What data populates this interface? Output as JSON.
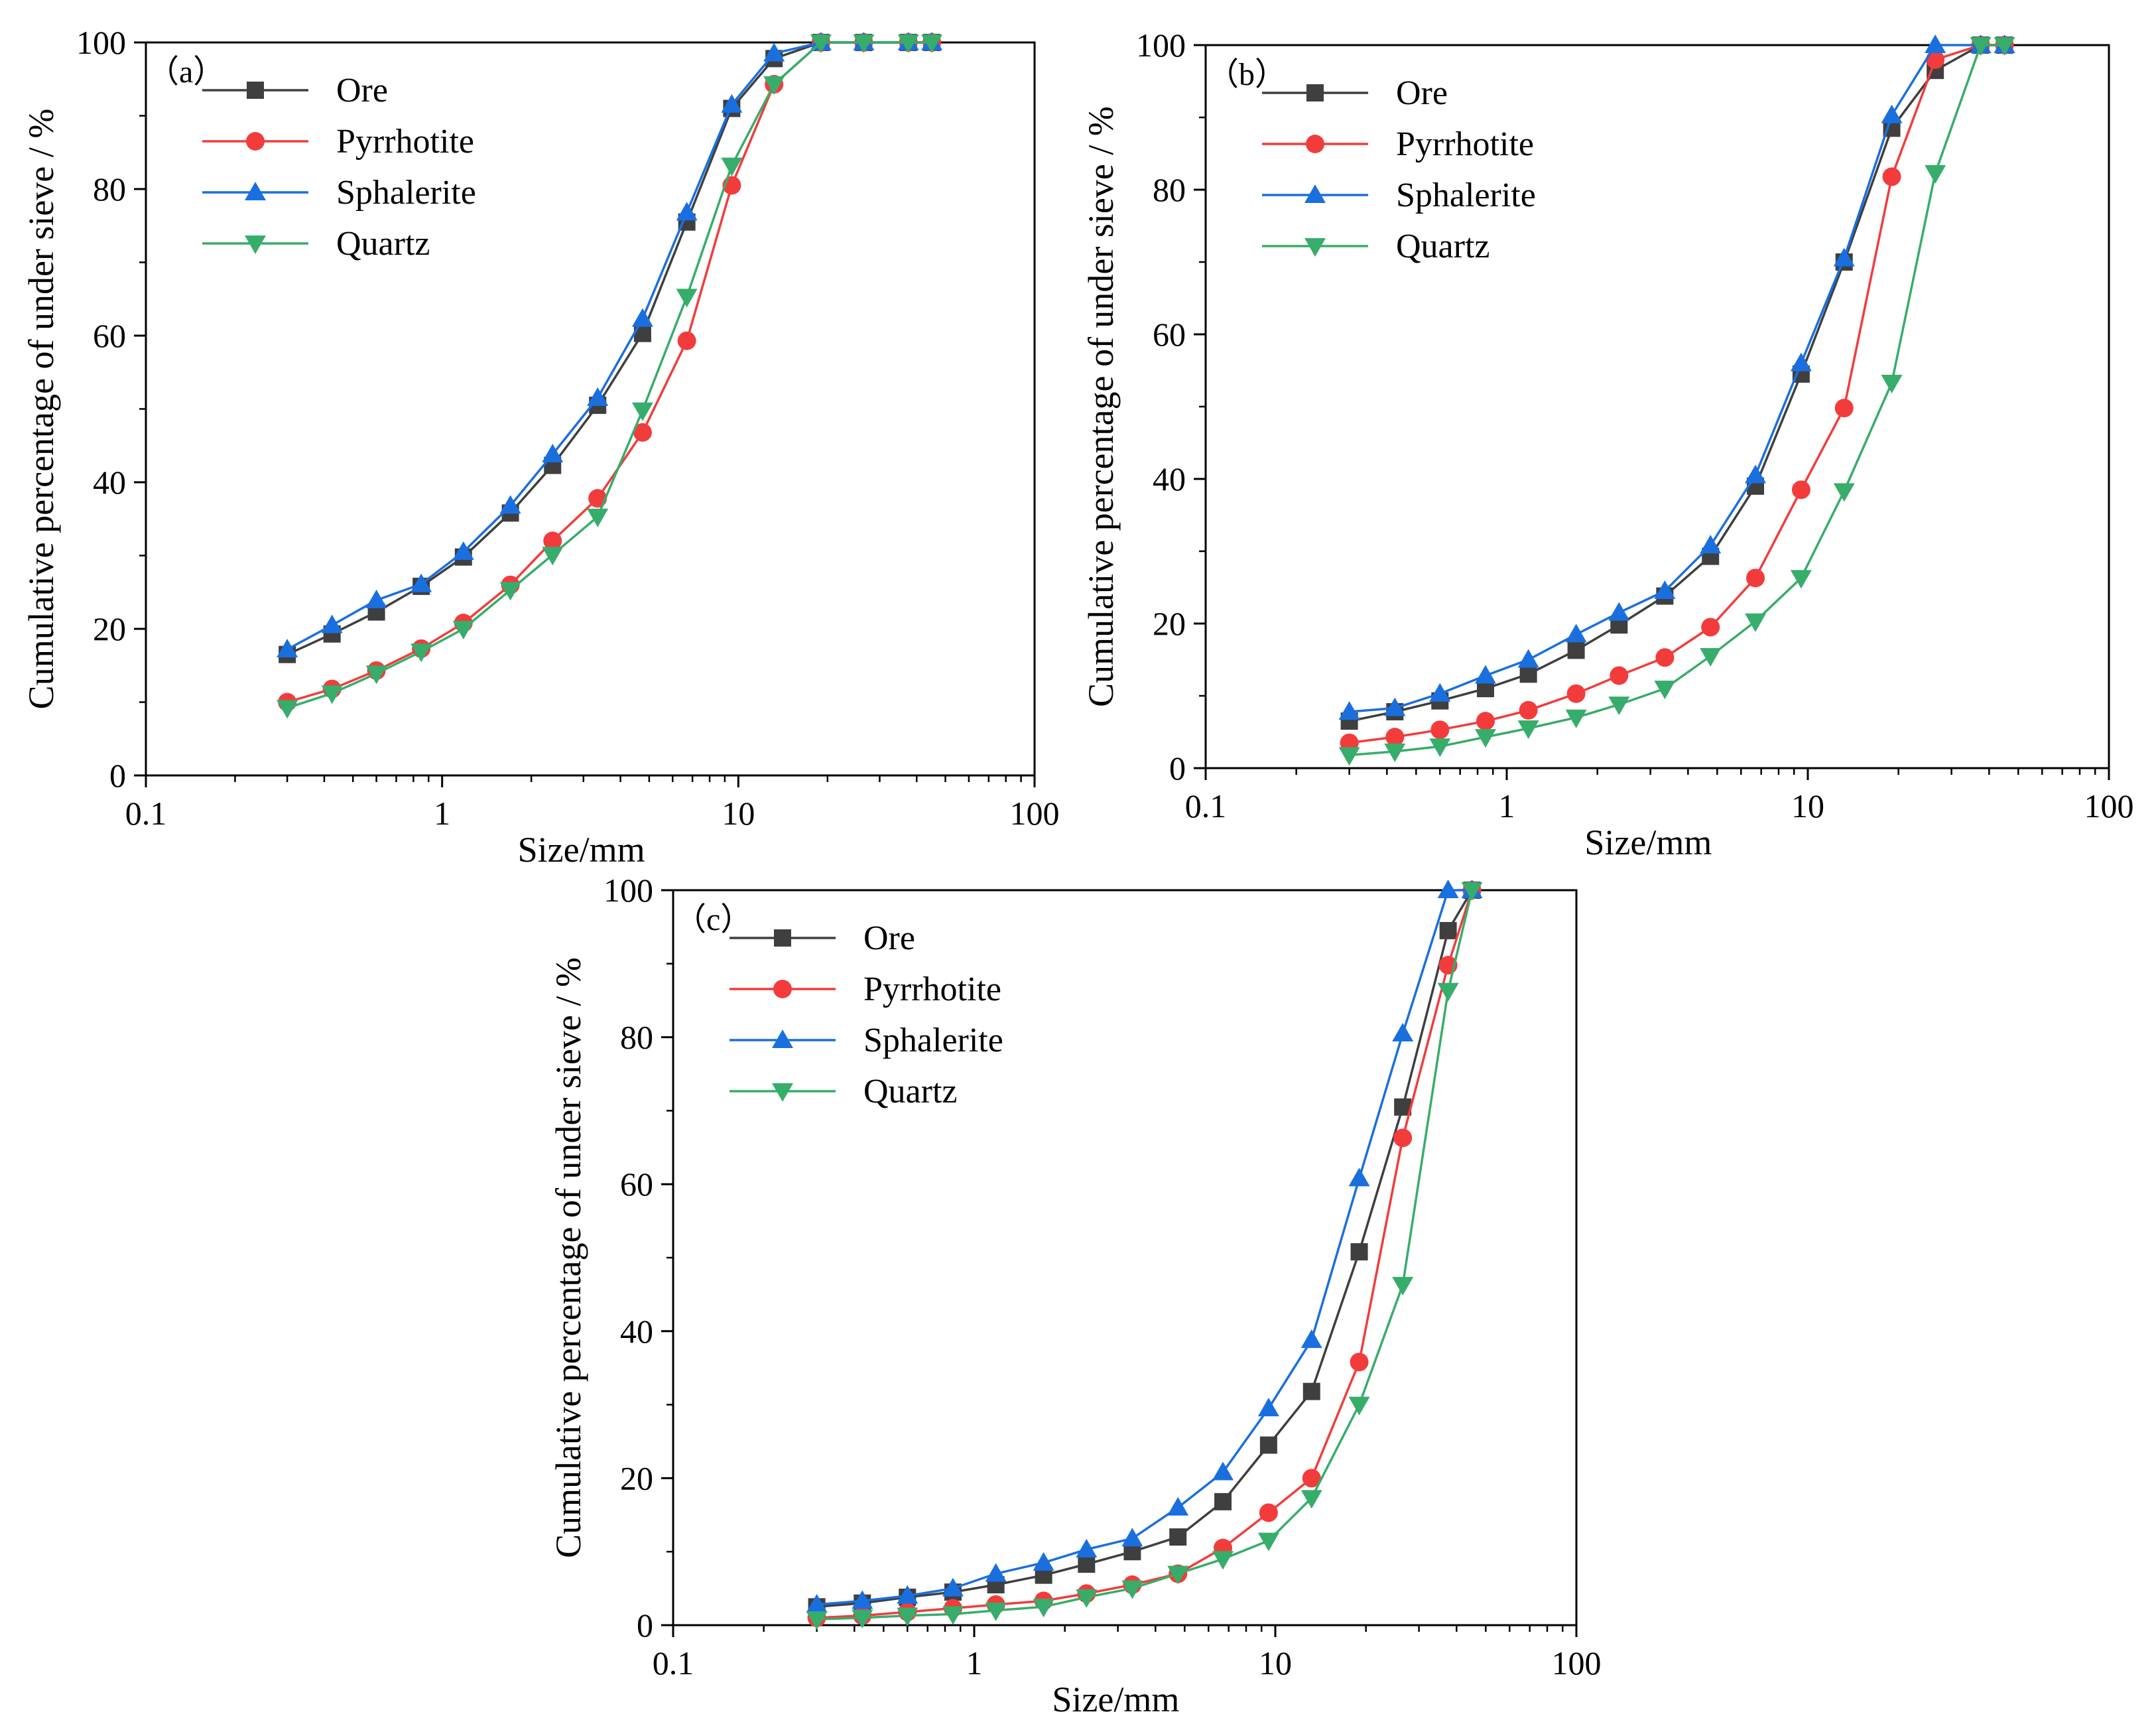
{
  "chart_data": [
    {
      "type": "line",
      "panel_label": "（a）",
      "xlabel": "Size/mm",
      "ylabel": "Cumulative percentage of under sieve / %",
      "xscale": "log",
      "xlim": [
        0.1,
        100
      ],
      "ylim": [
        0,
        100
      ],
      "xticks": [
        0.1,
        1,
        10,
        100
      ],
      "xtick_labels": [
        "0.1",
        "1",
        "10",
        "100"
      ],
      "yticks": [
        0,
        20,
        40,
        60,
        80,
        100
      ],
      "ytick_labels": [
        "0",
        "20",
        "40",
        "60",
        "80",
        "100"
      ],
      "legend_position": "top-left",
      "x": [
        0.3,
        0.425,
        0.6,
        0.85,
        1.18,
        1.7,
        2.36,
        3.35,
        4.75,
        6.7,
        9.5,
        13.2,
        19,
        26.5,
        37.5,
        45
      ],
      "series": [
        {
          "name": "Ore",
          "color": "#3f3f3f",
          "marker": "square",
          "values": [
            16.5,
            19.3,
            22.3,
            25.8,
            29.8,
            35.8,
            42.3,
            50.5,
            60.3,
            75.5,
            91.0,
            97.8,
            100,
            100,
            100,
            100
          ]
        },
        {
          "name": "Pyrrhotite",
          "color": "#f23c3c",
          "marker": "circle",
          "values": [
            10.0,
            11.8,
            14.3,
            17.3,
            20.8,
            26.0,
            32.0,
            37.8,
            46.8,
            59.3,
            80.5,
            94.3,
            100,
            100,
            100,
            100
          ]
        },
        {
          "name": "Sphalerite",
          "color": "#1a6fdf",
          "marker": "triangle-up",
          "values": [
            17.2,
            20.5,
            23.9,
            26.1,
            30.5,
            36.8,
            43.8,
            51.5,
            62.3,
            76.8,
            91.5,
            98.5,
            100,
            100,
            100,
            100
          ]
        },
        {
          "name": "Quartz",
          "color": "#37ad6b",
          "marker": "triangle-down",
          "values": [
            9.2,
            11.2,
            13.9,
            16.9,
            20.0,
            25.3,
            30.1,
            35.3,
            49.8,
            65.3,
            83.2,
            94.3,
            100,
            100,
            100,
            100
          ]
        }
      ]
    },
    {
      "type": "line",
      "panel_label": "（b）",
      "xlabel": "Size/mm",
      "ylabel": "Cumulative percentage of under sieve / %",
      "xscale": "log",
      "xlim": [
        0.1,
        100
      ],
      "ylim": [
        0,
        100
      ],
      "xticks": [
        0.1,
        1,
        10,
        100
      ],
      "xtick_labels": [
        "0.1",
        "1",
        "10",
        "100"
      ],
      "yticks": [
        0,
        20,
        40,
        60,
        80,
        100
      ],
      "ytick_labels": [
        "0",
        "20",
        "40",
        "60",
        "80",
        "100"
      ],
      "legend_position": "top-left",
      "x": [
        0.3,
        0.425,
        0.6,
        0.85,
        1.18,
        1.7,
        2.36,
        3.35,
        4.75,
        6.7,
        9.5,
        13.2,
        19,
        26.5,
        37.5,
        45
      ],
      "series": [
        {
          "name": "Ore",
          "color": "#3f3f3f",
          "marker": "square",
          "values": [
            6.5,
            7.8,
            9.3,
            11.0,
            13.0,
            16.3,
            19.8,
            23.8,
            29.3,
            39.0,
            54.5,
            70.0,
            88.5,
            96.5,
            100,
            100
          ]
        },
        {
          "name": "Pyrrhotite",
          "color": "#f23c3c",
          "marker": "circle",
          "values": [
            3.5,
            4.3,
            5.3,
            6.5,
            8.0,
            10.3,
            12.8,
            15.3,
            19.5,
            26.3,
            38.5,
            49.8,
            81.8,
            98.0,
            100,
            100
          ]
        },
        {
          "name": "Sphalerite",
          "color": "#1a6fdf",
          "marker": "triangle-up",
          "values": [
            7.8,
            8.3,
            10.3,
            12.8,
            15.0,
            18.5,
            21.5,
            24.5,
            30.8,
            40.5,
            56.0,
            70.5,
            90.3,
            100,
            100,
            100
          ]
        },
        {
          "name": "Quartz",
          "color": "#37ad6b",
          "marker": "triangle-down",
          "values": [
            1.8,
            2.3,
            3.0,
            4.3,
            5.5,
            7.0,
            8.8,
            11.0,
            15.5,
            20.3,
            26.3,
            38.3,
            53.3,
            82.3,
            100,
            100
          ]
        }
      ]
    },
    {
      "type": "line",
      "panel_label": "（c）",
      "xlabel": "Size/mm",
      "ylabel": "Cumulative percentage of under sieve / %",
      "xscale": "log",
      "xlim": [
        0.1,
        100
      ],
      "ylim": [
        0,
        100
      ],
      "xticks": [
        0.1,
        1,
        10,
        100
      ],
      "xtick_labels": [
        "0.1",
        "1",
        "10",
        "100"
      ],
      "yticks": [
        0,
        20,
        40,
        60,
        80,
        100
      ],
      "ytick_labels": [
        "0",
        "20",
        "40",
        "60",
        "80",
        "100"
      ],
      "legend_position": "top-left",
      "x": [
        0.3,
        0.425,
        0.6,
        0.85,
        1.18,
        1.7,
        2.36,
        3.35,
        4.75,
        6.7,
        9.5,
        13.2,
        19,
        26.5,
        37.5,
        45
      ],
      "series": [
        {
          "name": "Ore",
          "color": "#3f3f3f",
          "marker": "square",
          "values": [
            2.5,
            3.0,
            3.8,
            4.5,
            5.5,
            6.8,
            8.3,
            10.0,
            12.0,
            16.8,
            24.5,
            31.8,
            50.8,
            70.5,
            94.5,
            100
          ]
        },
        {
          "name": "Pyrrhotite",
          "color": "#f23c3c",
          "marker": "circle",
          "values": [
            1.0,
            1.3,
            1.8,
            2.3,
            2.8,
            3.3,
            4.3,
            5.5,
            7.0,
            10.5,
            15.3,
            20.0,
            35.8,
            66.3,
            89.8,
            100
          ]
        },
        {
          "name": "Sphalerite",
          "color": "#1a6fdf",
          "marker": "triangle-up",
          "values": [
            2.8,
            3.3,
            4.0,
            5.0,
            7.0,
            8.5,
            10.3,
            11.8,
            16.0,
            20.8,
            29.5,
            38.8,
            60.8,
            80.5,
            100,
            100
          ]
        },
        {
          "name": "Quartz",
          "color": "#37ad6b",
          "marker": "triangle-down",
          "values": [
            0.8,
            1.0,
            1.3,
            1.5,
            2.0,
            2.5,
            3.8,
            5.0,
            7.0,
            9.0,
            11.5,
            17.3,
            30.0,
            46.3,
            86.3,
            100
          ]
        }
      ]
    }
  ]
}
